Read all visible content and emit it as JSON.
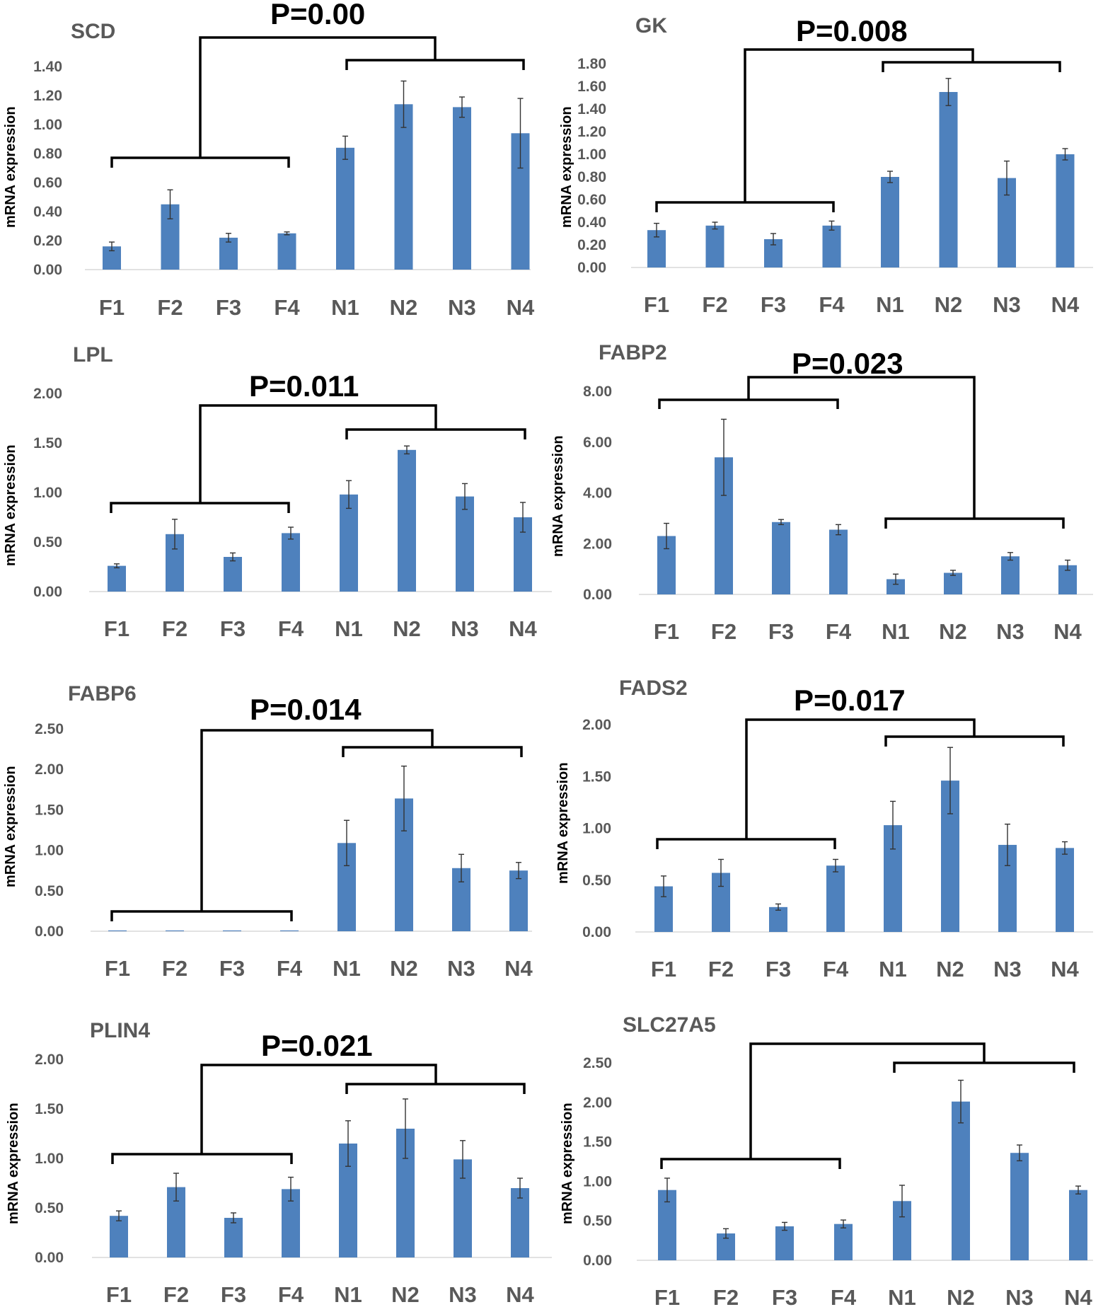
{
  "figure": {
    "ylabel_text": "mRNA expression",
    "bar_color": "#4e81bd",
    "axis_color": "#d9d9d9",
    "bracket_color": "#000000"
  },
  "chart_data": [
    {
      "type": "bar",
      "title": "SCD",
      "annotation": "P=0.00",
      "ylabel": "mRNA expression",
      "categories": [
        "F1",
        "F2",
        "F3",
        "F4",
        "N1",
        "N2",
        "N3",
        "N4"
      ],
      "values": [
        0.16,
        0.45,
        0.22,
        0.25,
        0.84,
        1.14,
        1.12,
        0.94
      ],
      "errors": [
        0.03,
        0.1,
        0.03,
        0.01,
        0.08,
        0.16,
        0.07,
        0.24
      ],
      "yticks": [
        "0.00",
        "0.20",
        "0.40",
        "0.60",
        "0.80",
        "1.00",
        "1.20",
        "1.40"
      ],
      "ylim": [
        0,
        1.4
      ]
    },
    {
      "type": "bar",
      "title": "GK",
      "annotation": "P=0.008",
      "ylabel": "mRNA expression",
      "categories": [
        "F1",
        "F2",
        "F3",
        "F4",
        "N1",
        "N2",
        "N3",
        "N4"
      ],
      "values": [
        0.33,
        0.37,
        0.25,
        0.37,
        0.8,
        1.55,
        0.79,
        1.0
      ],
      "errors": [
        0.06,
        0.03,
        0.05,
        0.04,
        0.05,
        0.12,
        0.15,
        0.05
      ],
      "yticks": [
        "0.00",
        "0.20",
        "0.40",
        "0.60",
        "0.80",
        "1.00",
        "1.20",
        "1.40",
        "1.60",
        "1.80"
      ],
      "ylim": [
        0,
        1.8
      ]
    },
    {
      "type": "bar",
      "title": "LPL",
      "annotation": "P=0.011",
      "ylabel": "mRNA expression",
      "categories": [
        "F1",
        "F2",
        "F3",
        "F4",
        "N1",
        "N2",
        "N3",
        "N4"
      ],
      "values": [
        0.26,
        0.58,
        0.35,
        0.59,
        0.98,
        1.43,
        0.96,
        0.75
      ],
      "errors": [
        0.02,
        0.15,
        0.04,
        0.06,
        0.14,
        0.04,
        0.13,
        0.15
      ],
      "yticks": [
        "0.00",
        "0.50",
        "1.00",
        "1.50",
        "2.00"
      ],
      "ylim": [
        0,
        2.0
      ]
    },
    {
      "type": "bar",
      "title": "FABP2",
      "annotation": "P=0.023",
      "ylabel": "mRNA expression",
      "categories": [
        "F1",
        "F2",
        "F3",
        "F4",
        "N1",
        "N2",
        "N3",
        "N4"
      ],
      "values": [
        2.3,
        5.4,
        2.85,
        2.55,
        0.6,
        0.85,
        1.5,
        1.15
      ],
      "errors": [
        0.5,
        1.5,
        0.1,
        0.2,
        0.2,
        0.1,
        0.15,
        0.2
      ],
      "yticks": [
        "0.00",
        "2.00",
        "4.00",
        "6.00",
        "8.00"
      ],
      "ylim": [
        0,
        8.0
      ]
    },
    {
      "type": "bar",
      "title": "FABP6",
      "annotation": "P=0.014",
      "ylabel": "mRNA expression",
      "categories": [
        "F1",
        "F2",
        "F3",
        "F4",
        "N1",
        "N2",
        "N3",
        "N4"
      ],
      "values": [
        0.01,
        0.01,
        0.01,
        0.01,
        1.09,
        1.64,
        0.78,
        0.75
      ],
      "errors": [
        0.0,
        0.0,
        0.0,
        0.0,
        0.28,
        0.4,
        0.17,
        0.1
      ],
      "yticks": [
        "0.00",
        "0.50",
        "1.00",
        "1.50",
        "2.00",
        "2.50"
      ],
      "ylim": [
        0,
        2.5
      ]
    },
    {
      "type": "bar",
      "title": "FADS2",
      "annotation": "P=0.017",
      "ylabel": "mRNA expression",
      "categories": [
        "F1",
        "F2",
        "F3",
        "F4",
        "N1",
        "N2",
        "N3",
        "N4"
      ],
      "values": [
        0.44,
        0.57,
        0.24,
        0.64,
        1.03,
        1.46,
        0.84,
        0.81
      ],
      "errors": [
        0.1,
        0.13,
        0.03,
        0.06,
        0.23,
        0.32,
        0.2,
        0.06
      ],
      "yticks": [
        "0.00",
        "0.50",
        "1.00",
        "1.50",
        "2.00"
      ],
      "ylim": [
        0,
        2.0
      ]
    },
    {
      "type": "bar",
      "title": "PLIN4",
      "annotation": "P=0.021",
      "ylabel": "mRNA expression",
      "categories": [
        "F1",
        "F2",
        "F3",
        "F4",
        "N1",
        "N2",
        "N3",
        "N4"
      ],
      "values": [
        0.42,
        0.71,
        0.4,
        0.69,
        1.15,
        1.3,
        0.99,
        0.7
      ],
      "errors": [
        0.05,
        0.14,
        0.05,
        0.12,
        0.23,
        0.3,
        0.19,
        0.1
      ],
      "yticks": [
        "0.00",
        "0.50",
        "1.00",
        "1.50",
        "2.00"
      ],
      "ylim": [
        0,
        2.0
      ]
    },
    {
      "type": "bar",
      "title": "SLC27A5",
      "annotation": "",
      "ylabel": "mRNA expression",
      "categories": [
        "F1",
        "F2",
        "F3",
        "F4",
        "N1",
        "N2",
        "N3",
        "N4"
      ],
      "values": [
        0.89,
        0.34,
        0.43,
        0.46,
        0.75,
        2.01,
        1.36,
        0.89
      ],
      "errors": [
        0.15,
        0.06,
        0.05,
        0.05,
        0.2,
        0.27,
        0.1,
        0.05
      ],
      "yticks": [
        "0.00",
        "0.50",
        "1.00",
        "1.50",
        "2.00",
        "2.50"
      ],
      "ylim": [
        0,
        2.5
      ]
    }
  ]
}
